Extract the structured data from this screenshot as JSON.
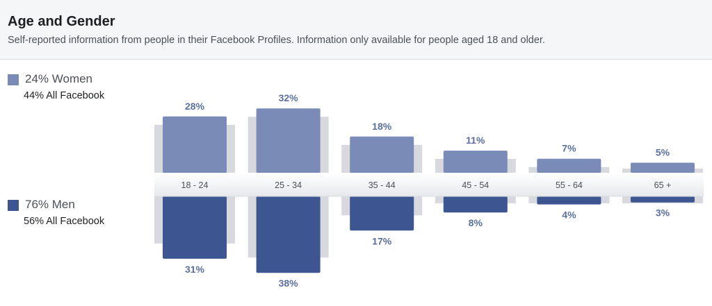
{
  "header": {
    "title": "Age and Gender",
    "subtitle": "Self-reported information from people in their Facebook Profiles. Information only available for people aged 18 and older."
  },
  "legend": {
    "women": {
      "label": "24% Women",
      "sub": "44% All Facebook",
      "color": "#7b8bb8"
    },
    "men": {
      "label": "76% Men",
      "sub": "56% All Facebook",
      "color": "#3d5590"
    }
  },
  "colors": {
    "women_bar": "#7b8bb8",
    "men_bar": "#3d5590",
    "background_bar": "#d7d9de",
    "value_label": "#5b6f9f"
  },
  "chart_data": {
    "type": "bar",
    "categories": [
      "18 - 24",
      "25 - 34",
      "35 - 44",
      "45 - 54",
      "55 - 64",
      "65 +"
    ],
    "series": [
      {
        "name": "Women",
        "values": [
          28,
          32,
          18,
          11,
          7,
          5
        ],
        "labels": [
          "28%",
          "32%",
          "18%",
          "11%",
          "7%",
          "5%"
        ]
      },
      {
        "name": "Men",
        "values": [
          31,
          38,
          17,
          8,
          4,
          3
        ],
        "labels": [
          "31%",
          "38%",
          "17%",
          "8%",
          "4%",
          "3%"
        ]
      }
    ]
  }
}
